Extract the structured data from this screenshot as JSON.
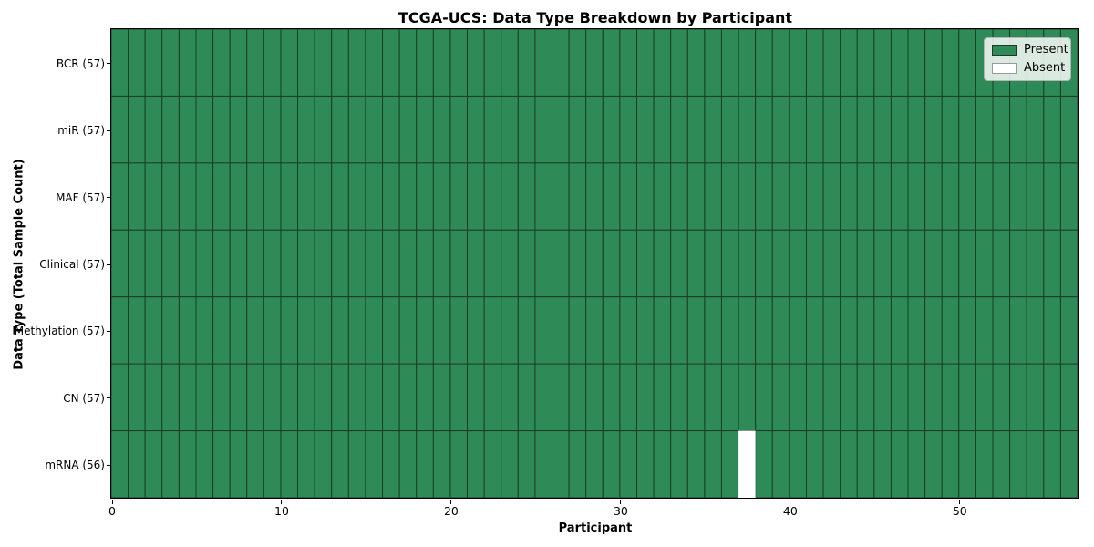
{
  "figure": {
    "title": "TCGA-UCS: Data Type Breakdown by Participant",
    "xlabel": "Participant",
    "ylabel": "Data Type (Total Sample Count)"
  },
  "legend": {
    "items": [
      {
        "label": "Present",
        "color": "#2e8b57"
      },
      {
        "label": "Absent",
        "color": "#ffffff"
      }
    ]
  },
  "chart_data": {
    "type": "heatmap",
    "title": "TCGA-UCS: Data Type Breakdown by Participant",
    "xlabel": "Participant",
    "ylabel": "Data Type (Total Sample Count)",
    "rows": [
      "BCR (57)",
      "miR (57)",
      "MAF (57)",
      "Clinical (57)",
      "Methylation (57)",
      "CN (57)",
      "mRNA (56)"
    ],
    "row_totals": [
      57,
      57,
      57,
      57,
      57,
      57,
      56
    ],
    "n_participants": 57,
    "xlim": [
      0,
      57
    ],
    "x_ticks": [
      0,
      10,
      20,
      30,
      40,
      50
    ],
    "present_color": "#2e8b57",
    "absent_color": "#ffffff",
    "cell_border_color": "#1b3d28",
    "absent_cells": [
      {
        "row": "mRNA (56)",
        "row_index": 6,
        "participant_index": 37
      }
    ],
    "legend_entries": [
      "Present",
      "Absent"
    ],
    "legend_position": "upper right",
    "grid": "cell borders on"
  }
}
